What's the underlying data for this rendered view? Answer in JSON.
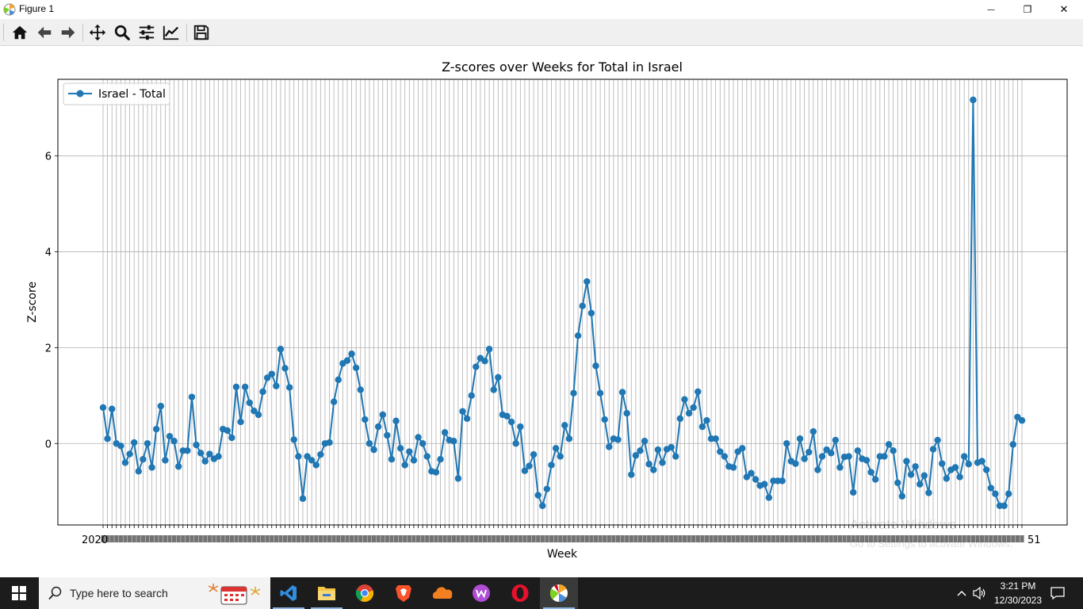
{
  "window": {
    "title": "Figure 1",
    "minimize_glyph": "—",
    "restore_glyph": "❐",
    "close_glyph": "✕"
  },
  "toolbar": {
    "buttons": [
      {
        "name": "home-button",
        "icon": "home-icon"
      },
      {
        "name": "back-button",
        "icon": "arrow-left-icon"
      },
      {
        "name": "forward-button",
        "icon": "arrow-right-icon"
      },
      {
        "name": "pan-button",
        "icon": "move-icon"
      },
      {
        "name": "zoom-button",
        "icon": "magnifier-icon"
      },
      {
        "name": "subplots-button",
        "icon": "sliders-icon"
      },
      {
        "name": "edit-axis-button",
        "icon": "chart-line-icon"
      },
      {
        "name": "save-button",
        "icon": "floppy-icon"
      }
    ]
  },
  "chart_data": {
    "type": "line",
    "title": "Z-scores over Weeks for Total in Israel",
    "xlabel": "Week",
    "ylabel": "Z-score",
    "ylim": [
      -1.7,
      7.6
    ],
    "yticks": [
      0,
      2,
      4,
      6
    ],
    "grid": true,
    "legend": {
      "position": "top-left",
      "entries": [
        "Israel - Total"
      ]
    },
    "x_tick_first": "2020",
    "x_tick_last": "51",
    "series": [
      {
        "name": "Israel - Total",
        "color": "#1f77b4",
        "values": [
          0.75,
          0.1,
          0.72,
          0,
          -0.05,
          -0.4,
          -0.22,
          0.02,
          -0.58,
          -0.33,
          0,
          -0.5,
          0.3,
          0.78,
          -0.35,
          0.15,
          0.05,
          -0.48,
          -0.15,
          -0.15,
          0.97,
          -0.03,
          -0.2,
          -0.37,
          -0.22,
          -0.32,
          -0.27,
          0.3,
          0.27,
          0.12,
          1.18,
          0.45,
          1.18,
          0.85,
          0.68,
          0.6,
          1.08,
          1.37,
          1.45,
          1.2,
          1.97,
          1.57,
          1.17,
          0.08,
          -0.27,
          -1.15,
          -0.27,
          -0.35,
          -0.45,
          -0.23,
          0,
          0.02,
          0.87,
          1.33,
          1.67,
          1.73,
          1.87,
          1.58,
          1.12,
          0.5,
          0,
          -0.13,
          0.35,
          0.6,
          0.17,
          -0.33,
          0.47,
          -0.1,
          -0.45,
          -0.17,
          -0.35,
          0.13,
          0,
          -0.27,
          -0.58,
          -0.6,
          -0.33,
          0.23,
          0.07,
          0.05,
          -0.73,
          0.67,
          0.52,
          1,
          1.6,
          1.78,
          1.72,
          1.97,
          1.12,
          1.38,
          0.6,
          0.57,
          0.45,
          0,
          0.35,
          -0.57,
          -0.47,
          -0.23,
          -1.08,
          -1.3,
          -0.95,
          -0.45,
          -0.1,
          -0.27,
          0.38,
          0.1,
          1.05,
          2.25,
          2.87,
          3.38,
          2.72,
          1.62,
          1.05,
          0.5,
          -0.07,
          0.1,
          0.08,
          1.07,
          0.63,
          -0.65,
          -0.25,
          -0.15,
          0.05,
          -0.43,
          -0.55,
          -0.13,
          -0.4,
          -0.12,
          -0.08,
          -0.27,
          0.52,
          0.92,
          0.63,
          0.75,
          1.08,
          0.35,
          0.48,
          0.1,
          0.1,
          -0.17,
          -0.27,
          -0.48,
          -0.5,
          -0.17,
          -0.1,
          -0.7,
          -0.62,
          -0.75,
          -0.88,
          -0.85,
          -1.13,
          -0.78,
          -0.78,
          -0.78,
          0,
          -0.37,
          -0.42,
          0.1,
          -0.32,
          -0.18,
          0.25,
          -0.55,
          -0.27,
          -0.13,
          -0.2,
          0.07,
          -0.5,
          -0.28,
          -0.27,
          -1.02,
          -0.15,
          -0.32,
          -0.35,
          -0.6,
          -0.75,
          -0.27,
          -0.27,
          -0.02,
          -0.15,
          -0.82,
          -1.1,
          -0.37,
          -0.65,
          -0.48,
          -0.85,
          -0.67,
          -1.03,
          -0.12,
          0.07,
          -0.42,
          -0.73,
          -0.55,
          -0.5,
          -0.7,
          -0.27,
          -0.43,
          7.17,
          -0.4,
          -0.37,
          -0.55,
          -0.93,
          -1.05,
          -1.3,
          -1.3,
          -1.05,
          -0.02,
          0.55,
          0.48
        ]
      }
    ]
  },
  "watermark": {
    "line1": "Activate Windows",
    "line2": "Go to Settings to activate Windows."
  },
  "taskbar": {
    "search_placeholder": "Type here to search",
    "apps": [
      {
        "name": "vscode",
        "icon": "vscode-icon",
        "color": "#2f8ee0"
      },
      {
        "name": "file-explorer",
        "icon": "folder-icon",
        "color": "#f4c542"
      },
      {
        "name": "chrome",
        "icon": "chrome-icon",
        "color": "#4285f4"
      },
      {
        "name": "brave",
        "icon": "brave-icon",
        "color": "#fb542b"
      },
      {
        "name": "cloudflare",
        "icon": "cloud-icon",
        "color": "#f38020"
      },
      {
        "name": "wps",
        "icon": "wps-icon",
        "color": "#b04cd6"
      },
      {
        "name": "opera",
        "icon": "opera-icon",
        "color": "#e8112d"
      },
      {
        "name": "matplotlib",
        "icon": "matplotlib-icon",
        "color": "#ffffff"
      }
    ],
    "time": "3:21 PM",
    "date": "12/30/2023"
  }
}
